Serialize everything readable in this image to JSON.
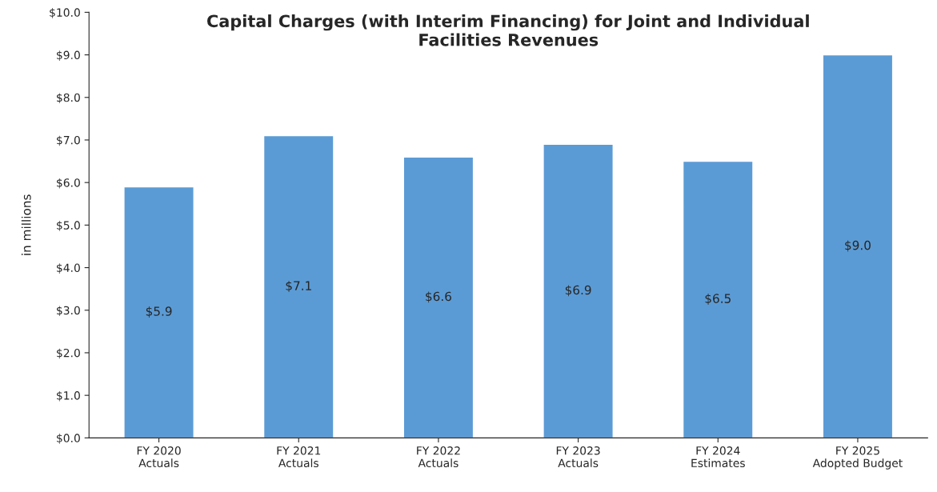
{
  "chart_data": {
    "type": "bar",
    "title": "Capital Charges (with Interim Financing) for Joint and Individual\nFacilities Revenues",
    "ylabel": "in millions",
    "categories": [
      "FY 2020\nActuals",
      "FY 2021\nActuals",
      "FY 2022\nActuals",
      "FY 2023\nActuals",
      "FY 2024\nEstimates",
      "FY 2025\nAdopted Budget"
    ],
    "values": [
      5.9,
      7.1,
      6.6,
      6.9,
      6.5,
      9.0
    ],
    "value_labels": [
      "$5.9",
      "$7.1",
      "$6.6",
      "$6.9",
      "$6.5",
      "$9.0"
    ],
    "color": "#5b9bd5",
    "ylim": [
      0,
      10
    ],
    "yticks": [
      {
        "value": 0,
        "label": "$0.0"
      },
      {
        "value": 1,
        "label": "$1.0"
      },
      {
        "value": 2,
        "label": "$2.0"
      },
      {
        "value": 3,
        "label": "$3.0"
      },
      {
        "value": 4,
        "label": "$4.0"
      },
      {
        "value": 5,
        "label": "$5.0"
      },
      {
        "value": 6,
        "label": "$6.0"
      },
      {
        "value": 7,
        "label": "$7.0"
      },
      {
        "value": 8,
        "label": "$8.0"
      },
      {
        "value": 9,
        "label": "$9.0"
      },
      {
        "value": 10,
        "label": "$10.0"
      }
    ],
    "grid": false,
    "legend": false
  }
}
